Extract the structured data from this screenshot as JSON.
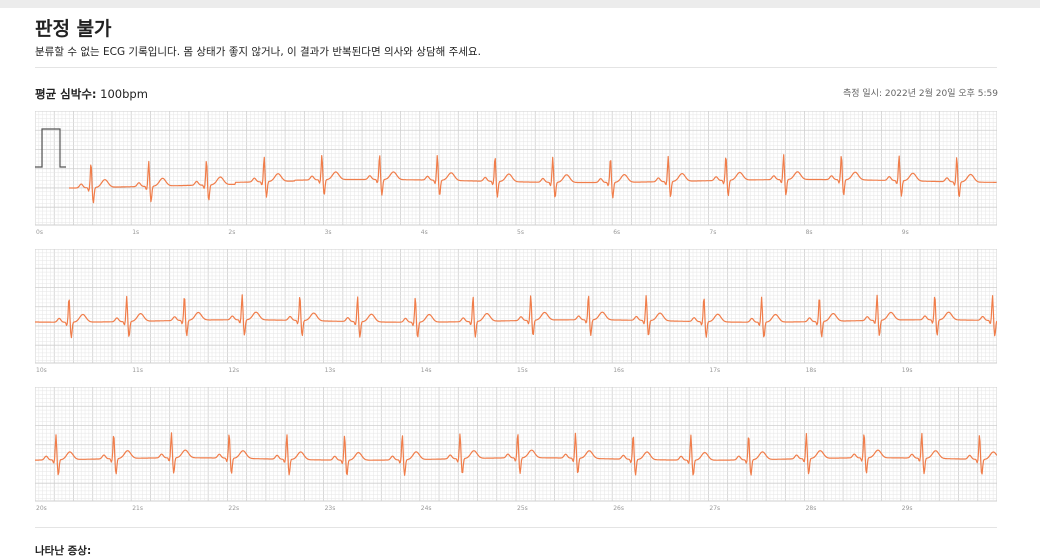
{
  "header": {
    "title": "판정 불가",
    "description": "분류할 수 없는 ECG 기록입니다. 몸 상태가 좋지 않거나, 이 결과가 반복된다면 의사와 상담해 주세요."
  },
  "summary": {
    "average_heart_rate_label": "평균 심박수:",
    "average_heart_rate_value": "100bpm",
    "measured_at": "측정 일시: 2022년 2월 20일 오후 5:59"
  },
  "strips": [
    {
      "ticks": [
        "0s",
        "1s",
        "2s",
        "3s",
        "4s",
        "5s",
        "6s",
        "7s",
        "8s",
        "9s"
      ],
      "calibration_pulse": true
    },
    {
      "ticks": [
        "10s",
        "11s",
        "12s",
        "13s",
        "14s",
        "15s",
        "16s",
        "17s",
        "18s",
        "19s"
      ],
      "calibration_pulse": false
    },
    {
      "ticks": [
        "20s",
        "21s",
        "22s",
        "23s",
        "24s",
        "25s",
        "26s",
        "27s",
        "28s",
        "29s"
      ],
      "calibration_pulse": false
    }
  ],
  "footer": {
    "symptoms_label": "나타난 증상:"
  },
  "colors": {
    "ecg_trace": "#f07d4a",
    "grid_minor": "#e6e6e6",
    "grid_major": "#cfcfcf"
  }
}
